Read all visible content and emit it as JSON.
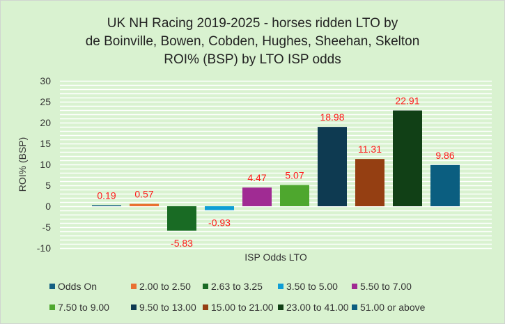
{
  "chart_data": {
    "type": "bar",
    "title_lines": [
      "UK NH Racing 2019-2025 - horses ridden LTO by",
      "de Boinville, Bowen, Cobden, Hughes, Sheehan, Skelton",
      "ROI% (BSP) by LTO ISP odds"
    ],
    "xlabel": "ISP Odds LTO",
    "ylabel": "ROI% (BSP)",
    "ylim": [
      -10,
      30
    ],
    "yticks": [
      30,
      25,
      20,
      15,
      10,
      5,
      0,
      -5,
      -10
    ],
    "grid": true,
    "minor_grid_step": 1,
    "legend_position": "bottom",
    "data_label_color": "#ff1a1a",
    "series": [
      {
        "name": "Odds On",
        "value": 0.19,
        "label": "0.19",
        "color": "#156082"
      },
      {
        "name": "2.00 to 2.50",
        "value": 0.57,
        "label": "0.57",
        "color": "#e97132"
      },
      {
        "name": "2.63 to 3.25",
        "value": -5.83,
        "label": "-5.83",
        "color": "#196b24"
      },
      {
        "name": "3.50 to 5.00",
        "value": -0.93,
        "label": "-0.93",
        "color": "#0f9ed5"
      },
      {
        "name": "5.50 to 7.00",
        "value": 4.47,
        "label": "4.47",
        "color": "#a02b93"
      },
      {
        "name": "7.50 to 9.00",
        "value": 5.07,
        "label": "5.07",
        "color": "#4ea72e"
      },
      {
        "name": "9.50 to 13.00",
        "value": 18.98,
        "label": "18.98",
        "color": "#0e3a51"
      },
      {
        "name": "15.00 to 21.00",
        "value": 11.31,
        "label": "11.31",
        "color": "#953f12"
      },
      {
        "name": "23.00 to 41.00",
        "value": 22.91,
        "label": "22.91",
        "color": "#114016"
      },
      {
        "name": "51.00 or above",
        "value": 9.86,
        "label": "9.86",
        "color": "#0b5e80"
      }
    ]
  }
}
